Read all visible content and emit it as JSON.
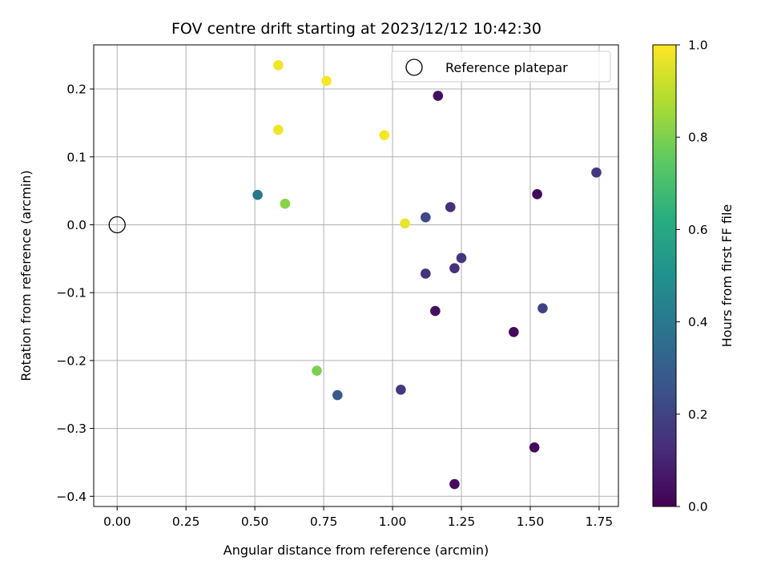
{
  "chart_data": {
    "type": "scatter",
    "title": "FOV centre drift starting at 2023/12/12 10:42:30",
    "xlabel": "Angular distance from reference (arcmin)",
    "ylabel": "Rotation from reference (arcmin)",
    "xlim": [
      -0.085,
      1.82
    ],
    "ylim": [
      -0.415,
      0.265
    ],
    "x_ticks": [
      0.0,
      0.25,
      0.5,
      0.75,
      1.0,
      1.25,
      1.5,
      1.75
    ],
    "x_tick_labels": [
      "0.00",
      "0.25",
      "0.50",
      "0.75",
      "1.00",
      "1.25",
      "1.50",
      "1.75"
    ],
    "y_ticks": [
      0.2,
      0.1,
      0.0,
      -0.1,
      -0.2,
      -0.3,
      -0.4
    ],
    "y_tick_labels": [
      "0.2",
      "0.1",
      "0.0",
      "−0.1",
      "−0.2",
      "−0.3",
      "−0.4"
    ],
    "grid": true,
    "legend": {
      "position": "top-right",
      "entries": [
        "Reference platepar"
      ]
    },
    "reference_point": {
      "x": 0.0,
      "y": 0.0,
      "label": "Reference platepar"
    },
    "colorbar": {
      "label": "Hours from first FF file",
      "colormap": "viridis",
      "range": [
        0.0,
        1.0
      ],
      "ticks": [
        0.0,
        0.2,
        0.4,
        0.6,
        0.8,
        1.0
      ],
      "tick_labels": [
        "0.0",
        "0.2",
        "0.4",
        "0.6",
        "0.8",
        "1.0"
      ]
    },
    "points": [
      {
        "x": 0.585,
        "y": 0.235,
        "hours": 0.98
      },
      {
        "x": 0.76,
        "y": 0.212,
        "hours": 0.99
      },
      {
        "x": 0.585,
        "y": 0.14,
        "hours": 0.98
      },
      {
        "x": 0.97,
        "y": 0.132,
        "hours": 0.99
      },
      {
        "x": 1.165,
        "y": 0.19,
        "hours": 0.04
      },
      {
        "x": 1.74,
        "y": 0.077,
        "hours": 0.16
      },
      {
        "x": 1.525,
        "y": 0.045,
        "hours": 0.02
      },
      {
        "x": 0.51,
        "y": 0.044,
        "hours": 0.4
      },
      {
        "x": 0.61,
        "y": 0.031,
        "hours": 0.82
      },
      {
        "x": 1.045,
        "y": 0.002,
        "hours": 0.97
      },
      {
        "x": 1.12,
        "y": 0.011,
        "hours": 0.22
      },
      {
        "x": 1.21,
        "y": 0.026,
        "hours": 0.14
      },
      {
        "x": 1.25,
        "y": -0.049,
        "hours": 0.16
      },
      {
        "x": 1.225,
        "y": -0.064,
        "hours": 0.15
      },
      {
        "x": 1.12,
        "y": -0.072,
        "hours": 0.15
      },
      {
        "x": 1.545,
        "y": -0.123,
        "hours": 0.2
      },
      {
        "x": 1.155,
        "y": -0.127,
        "hours": 0.04
      },
      {
        "x": 1.44,
        "y": -0.158,
        "hours": 0.02
      },
      {
        "x": 0.725,
        "y": -0.215,
        "hours": 0.8
      },
      {
        "x": 0.8,
        "y": -0.251,
        "hours": 0.28
      },
      {
        "x": 1.03,
        "y": -0.243,
        "hours": 0.17
      },
      {
        "x": 1.515,
        "y": -0.328,
        "hours": 0.02
      },
      {
        "x": 1.225,
        "y": -0.382,
        "hours": 0.03
      }
    ]
  }
}
